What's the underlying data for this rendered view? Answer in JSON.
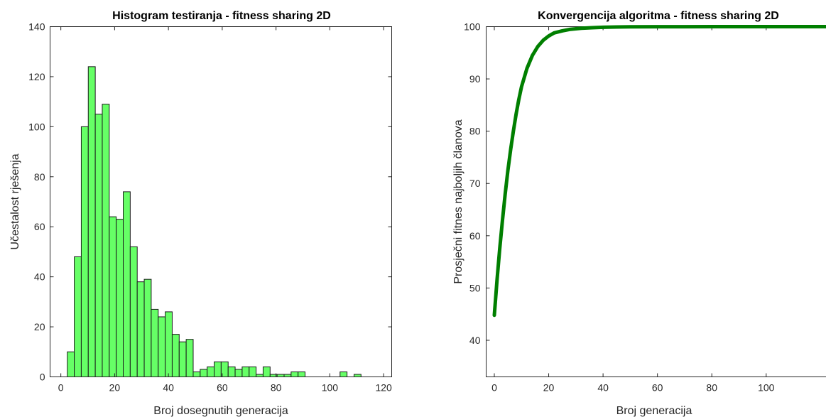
{
  "chart_data": [
    {
      "type": "bar",
      "title": "Histogram testiranja - fitness sharing 2D",
      "xlabel": "Broj dosegnutih generacija",
      "ylabel": "Učestalost rješenja",
      "xlim": [
        -4,
        123
      ],
      "ylim": [
        0,
        140
      ],
      "xticks": [
        0,
        20,
        40,
        60,
        80,
        100,
        120
      ],
      "yticks": [
        0,
        20,
        40,
        60,
        80,
        100,
        120,
        140
      ],
      "bin_width": 2.6,
      "bins": [
        {
          "x0": 2.4,
          "value": 10
        },
        {
          "x0": 5.0,
          "value": 48
        },
        {
          "x0": 7.6,
          "value": 100
        },
        {
          "x0": 10.2,
          "value": 124
        },
        {
          "x0": 12.8,
          "value": 105
        },
        {
          "x0": 15.4,
          "value": 109
        },
        {
          "x0": 18.0,
          "value": 64
        },
        {
          "x0": 20.6,
          "value": 63
        },
        {
          "x0": 23.2,
          "value": 74
        },
        {
          "x0": 25.8,
          "value": 52
        },
        {
          "x0": 28.4,
          "value": 38
        },
        {
          "x0": 31.0,
          "value": 39
        },
        {
          "x0": 33.6,
          "value": 27
        },
        {
          "x0": 36.2,
          "value": 24
        },
        {
          "x0": 38.8,
          "value": 26
        },
        {
          "x0": 41.4,
          "value": 17
        },
        {
          "x0": 44.0,
          "value": 14
        },
        {
          "x0": 46.6,
          "value": 15
        },
        {
          "x0": 49.2,
          "value": 2
        },
        {
          "x0": 51.8,
          "value": 3
        },
        {
          "x0": 54.4,
          "value": 4
        },
        {
          "x0": 57.0,
          "value": 6
        },
        {
          "x0": 59.6,
          "value": 6
        },
        {
          "x0": 62.2,
          "value": 4
        },
        {
          "x0": 64.8,
          "value": 3
        },
        {
          "x0": 67.4,
          "value": 4
        },
        {
          "x0": 70.0,
          "value": 4
        },
        {
          "x0": 72.6,
          "value": 1
        },
        {
          "x0": 75.2,
          "value": 4
        },
        {
          "x0": 77.8,
          "value": 1
        },
        {
          "x0": 80.4,
          "value": 1
        },
        {
          "x0": 83.0,
          "value": 1
        },
        {
          "x0": 85.6,
          "value": 2
        },
        {
          "x0": 88.2,
          "value": 2
        },
        {
          "x0": 103.8,
          "value": 2
        },
        {
          "x0": 109.0,
          "value": 1
        }
      ]
    },
    {
      "type": "line",
      "title": "Konvergencija algoritma - fitness sharing 2D",
      "xlabel": "Broj generacija",
      "ylabel": "Prosječni fitnes najboljih članova",
      "xlim": [
        -3,
        122
      ],
      "ylim": [
        33,
        100
      ],
      "xticks": [
        0,
        20,
        40,
        60,
        80,
        100
      ],
      "yticks": [
        40,
        50,
        60,
        70,
        80,
        90,
        100
      ],
      "color": "#007f00",
      "x": [
        0,
        1,
        2,
        3,
        4,
        5,
        6,
        7,
        8,
        9,
        10,
        12,
        14,
        16,
        18,
        20,
        22,
        25,
        28,
        32,
        36,
        40,
        45,
        50,
        60,
        70,
        80,
        90,
        100,
        110,
        122
      ],
      "y": [
        44.8,
        51.5,
        57.5,
        63.0,
        68.0,
        72.5,
        76.5,
        80.0,
        83.2,
        86.0,
        88.5,
        92.0,
        94.5,
        96.2,
        97.4,
        98.2,
        98.8,
        99.2,
        99.5,
        99.7,
        99.8,
        99.88,
        99.93,
        99.96,
        99.98,
        99.99,
        100,
        100,
        100,
        100,
        100
      ]
    }
  ]
}
